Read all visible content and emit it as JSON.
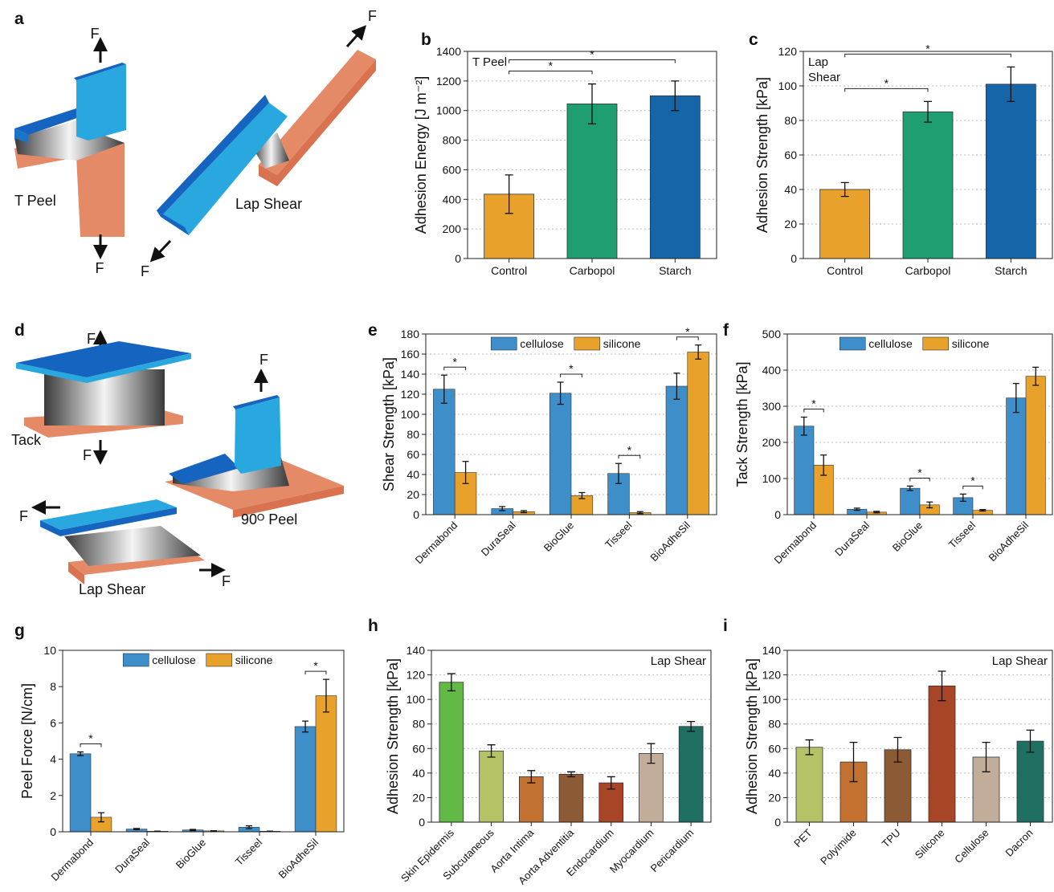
{
  "panel_labels": [
    "a",
    "b",
    "c",
    "d",
    "e",
    "f",
    "g",
    "h",
    "i"
  ],
  "diagram_a": {
    "labels": [
      "F",
      "F",
      "T Peel",
      "Lap Shear",
      "F",
      "F"
    ]
  },
  "diagram_d": {
    "labels": [
      "F",
      "Tack",
      "F",
      "F",
      "90ᴼ Peel",
      "F",
      "Lap Shear",
      "F"
    ]
  },
  "chart_data": [
    {
      "type": "bar",
      "ylabel": "Adhesion Energy [J m⁻²]",
      "categories": [
        "Control",
        "Carbopol",
        "Starch"
      ],
      "values": [
        435,
        1045,
        1100
      ],
      "errors": [
        130,
        135,
        100
      ],
      "colors": [
        "#e8a12a",
        "#1f9e72",
        "#1565a8"
      ],
      "ylim": [
        0,
        1400
      ],
      "yticks": [
        0,
        200,
        400,
        600,
        800,
        1000,
        1200,
        1400
      ],
      "grid": true,
      "annotation": [
        "T Peel"
      ],
      "annotation_position": "upper left",
      "significance": [
        {
          "label": "*",
          "categories": [
            0,
            1
          ]
        },
        {
          "label": "*",
          "categories": [
            0,
            2
          ]
        }
      ]
    },
    {
      "type": "bar",
      "ylabel": "Adhesion Strength [kPa]",
      "categories": [
        "Control",
        "Carbopol",
        "Starch"
      ],
      "values": [
        40,
        85,
        101
      ],
      "errors": [
        4,
        6,
        10
      ],
      "colors": [
        "#e8a12a",
        "#1f9e72",
        "#1565a8"
      ],
      "ylim": [
        0,
        120
      ],
      "yticks": [
        0,
        20,
        40,
        60,
        80,
        100,
        120
      ],
      "grid": true,
      "annotation": [
        "Lap",
        "Shear"
      ],
      "annotation_position": "upper left",
      "significance": [
        {
          "label": "*",
          "categories": [
            0,
            1
          ]
        },
        {
          "label": "*",
          "categories": [
            0,
            2
          ]
        }
      ]
    },
    {
      "type": "grouped_bar",
      "ylabel": "Shear Strength [kPa]",
      "categories": [
        "Dermabond",
        "DuraSeal",
        "BioGlue",
        "Tisseel",
        "BioAdheSil"
      ],
      "series": [
        {
          "name": "cellulose",
          "color": "#3d8ec9",
          "values": [
            125,
            6,
            121,
            41,
            128
          ],
          "errors": [
            14,
            2,
            11,
            10,
            13
          ]
        },
        {
          "name": "silicone",
          "color": "#e8a12a",
          "values": [
            42,
            3,
            19,
            2,
            162
          ],
          "errors": [
            11,
            1,
            3,
            1,
            7
          ]
        }
      ],
      "ylim": [
        0,
        180
      ],
      "yticks": [
        0,
        20,
        40,
        60,
        80,
        100,
        120,
        140,
        160,
        180
      ],
      "grid": true,
      "significance": [
        {
          "label": "*",
          "category": 0
        },
        {
          "label": "*",
          "category": 2
        },
        {
          "label": "*",
          "category": 3
        },
        {
          "label": "*",
          "category": 4
        }
      ]
    },
    {
      "type": "grouped_bar",
      "ylabel": "Tack Strength [kPa]",
      "categories": [
        "Dermabond",
        "DuraSeal",
        "BioGlue",
        "Tisseel",
        "BioAdheSil"
      ],
      "series": [
        {
          "name": "cellulose",
          "color": "#3d8ec9",
          "values": [
            245,
            15,
            73,
            47,
            323
          ],
          "errors": [
            25,
            3,
            6,
            10,
            40
          ]
        },
        {
          "name": "silicone",
          "color": "#e8a12a",
          "values": [
            137,
            7,
            27,
            12,
            383
          ],
          "errors": [
            28,
            2,
            8,
            2,
            25
          ]
        }
      ],
      "ylim": [
        0,
        500
      ],
      "yticks": [
        0,
        100,
        200,
        300,
        400,
        500
      ],
      "grid": true,
      "significance": [
        {
          "label": "*",
          "category": 0
        },
        {
          "label": "*",
          "category": 2
        },
        {
          "label": "*",
          "category": 3
        }
      ]
    },
    {
      "type": "grouped_bar",
      "ylabel": "Peel Force [N/cm]",
      "categories": [
        "Dermabond",
        "DuraSeal",
        "BioGlue",
        "Tisseel",
        "BioAdheSil"
      ],
      "series": [
        {
          "name": "cellulose",
          "color": "#3d8ec9",
          "values": [
            4.3,
            0.15,
            0.1,
            0.25,
            5.8
          ],
          "errors": [
            0.1,
            0.03,
            0.03,
            0.08,
            0.3
          ]
        },
        {
          "name": "silicone",
          "color": "#e8a12a",
          "values": [
            0.8,
            0.03,
            0.05,
            0.03,
            7.5
          ],
          "errors": [
            0.25,
            0.01,
            0.01,
            0.01,
            0.9
          ]
        }
      ],
      "ylim": [
        0,
        10
      ],
      "yticks": [
        0,
        2,
        4,
        6,
        8,
        10
      ],
      "grid": false,
      "significance": [
        {
          "label": "*",
          "category": 0
        },
        {
          "label": "*",
          "category": 4
        }
      ]
    },
    {
      "type": "bar",
      "ylabel": "Adhesion Strength [kPa]",
      "categories": [
        "Skin Epidermis",
        "Subcutaneous",
        "Aorta Intima",
        "Aorta Adventitia",
        "Endocardium",
        "Myocardium",
        "Pericardium"
      ],
      "values": [
        114,
        58,
        37,
        39,
        32,
        56,
        78
      ],
      "errors": [
        7,
        5,
        5,
        2,
        5,
        8,
        4
      ],
      "colors": [
        "#62b946",
        "#b5c266",
        "#c27131",
        "#8c5a35",
        "#a94527",
        "#c2ad9a",
        "#1f6f62"
      ],
      "ylim": [
        0,
        140
      ],
      "yticks": [
        0,
        20,
        40,
        60,
        80,
        100,
        120,
        140
      ],
      "grid": true,
      "annotation": [
        "Lap Shear"
      ],
      "annotation_position": "upper right"
    },
    {
      "type": "bar",
      "ylabel": "Adhesion Strength [kPa]",
      "categories": [
        "PET",
        "Polyimide",
        "TPU",
        "Silicone",
        "Cellulose",
        "Dacron"
      ],
      "values": [
        61,
        49,
        59,
        111,
        53,
        66
      ],
      "errors": [
        6,
        16,
        10,
        12,
        12,
        9
      ],
      "colors": [
        "#b5c266",
        "#c27131",
        "#8c5a35",
        "#a94527",
        "#c2ad9a",
        "#1f6f62"
      ],
      "ylim": [
        0,
        140
      ],
      "yticks": [
        0,
        20,
        40,
        60,
        80,
        100,
        120,
        140
      ],
      "grid": true,
      "annotation": [
        "Lap Shear"
      ],
      "annotation_position": "upper right"
    }
  ]
}
